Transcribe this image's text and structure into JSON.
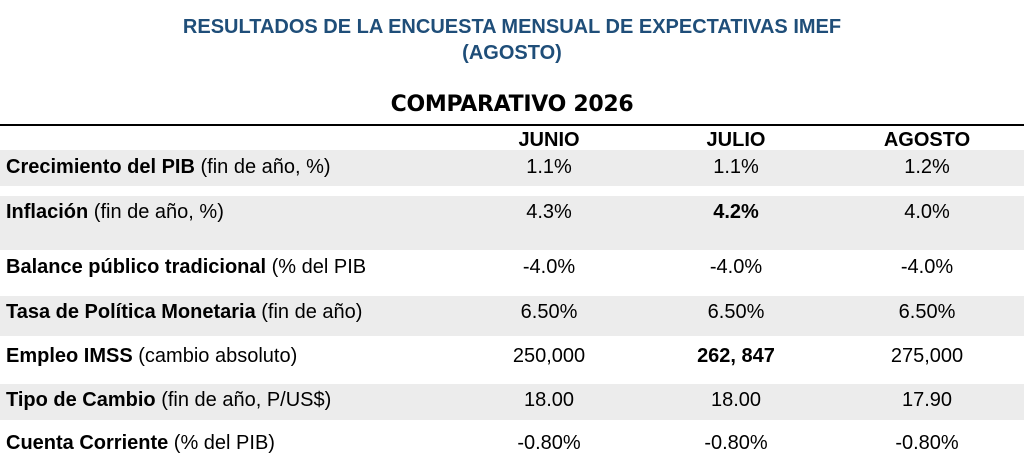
{
  "title_line1": "RESULTADOS DE LA ENCUESTA MENSUAL DE EXPECTATIVAS IMEF",
  "title_line2": "(AGOSTO)",
  "subtitle": "COMPARATIVO 2026",
  "columns": [
    "JUNIO",
    "JULIO",
    "AGOSTO"
  ],
  "rows": [
    {
      "name": "Crecimiento del PIB",
      "detail": " (fin de año, %)",
      "values": [
        "1.1%",
        "1.1%",
        "1.2%"
      ]
    },
    {
      "name": "Inflación",
      "detail": " (fin de año, %)",
      "values": [
        "4.3%",
        "4.2%",
        "4.0%"
      ]
    },
    {
      "name": "Balance público tradicional",
      "detail": " (% del PIB",
      "values": [
        "-4.0%",
        "-4.0%",
        "-4.0%"
      ]
    },
    {
      "name": "Tasa de Política Monetaria",
      "detail": " (fin de año)",
      "values": [
        "6.50%",
        "6.50%",
        "6.50%"
      ]
    },
    {
      "name": "Empleo IMSS",
      "detail": " (cambio absoluto)",
      "values": [
        "250,000",
        "262, 847",
        "275,000"
      ]
    },
    {
      "name": "Tipo de Cambio",
      "detail": " (fin de año, P/US$)",
      "values": [
        "18.00",
        "18.00",
        "17.90"
      ]
    },
    {
      "name": "Cuenta Corriente",
      "detail": " (% del PIB)",
      "values": [
        "-0.80%",
        "-0.80%",
        "-0.80%"
      ]
    }
  ],
  "colors": {
    "title": "#1f4e79",
    "band": "#ececec"
  }
}
